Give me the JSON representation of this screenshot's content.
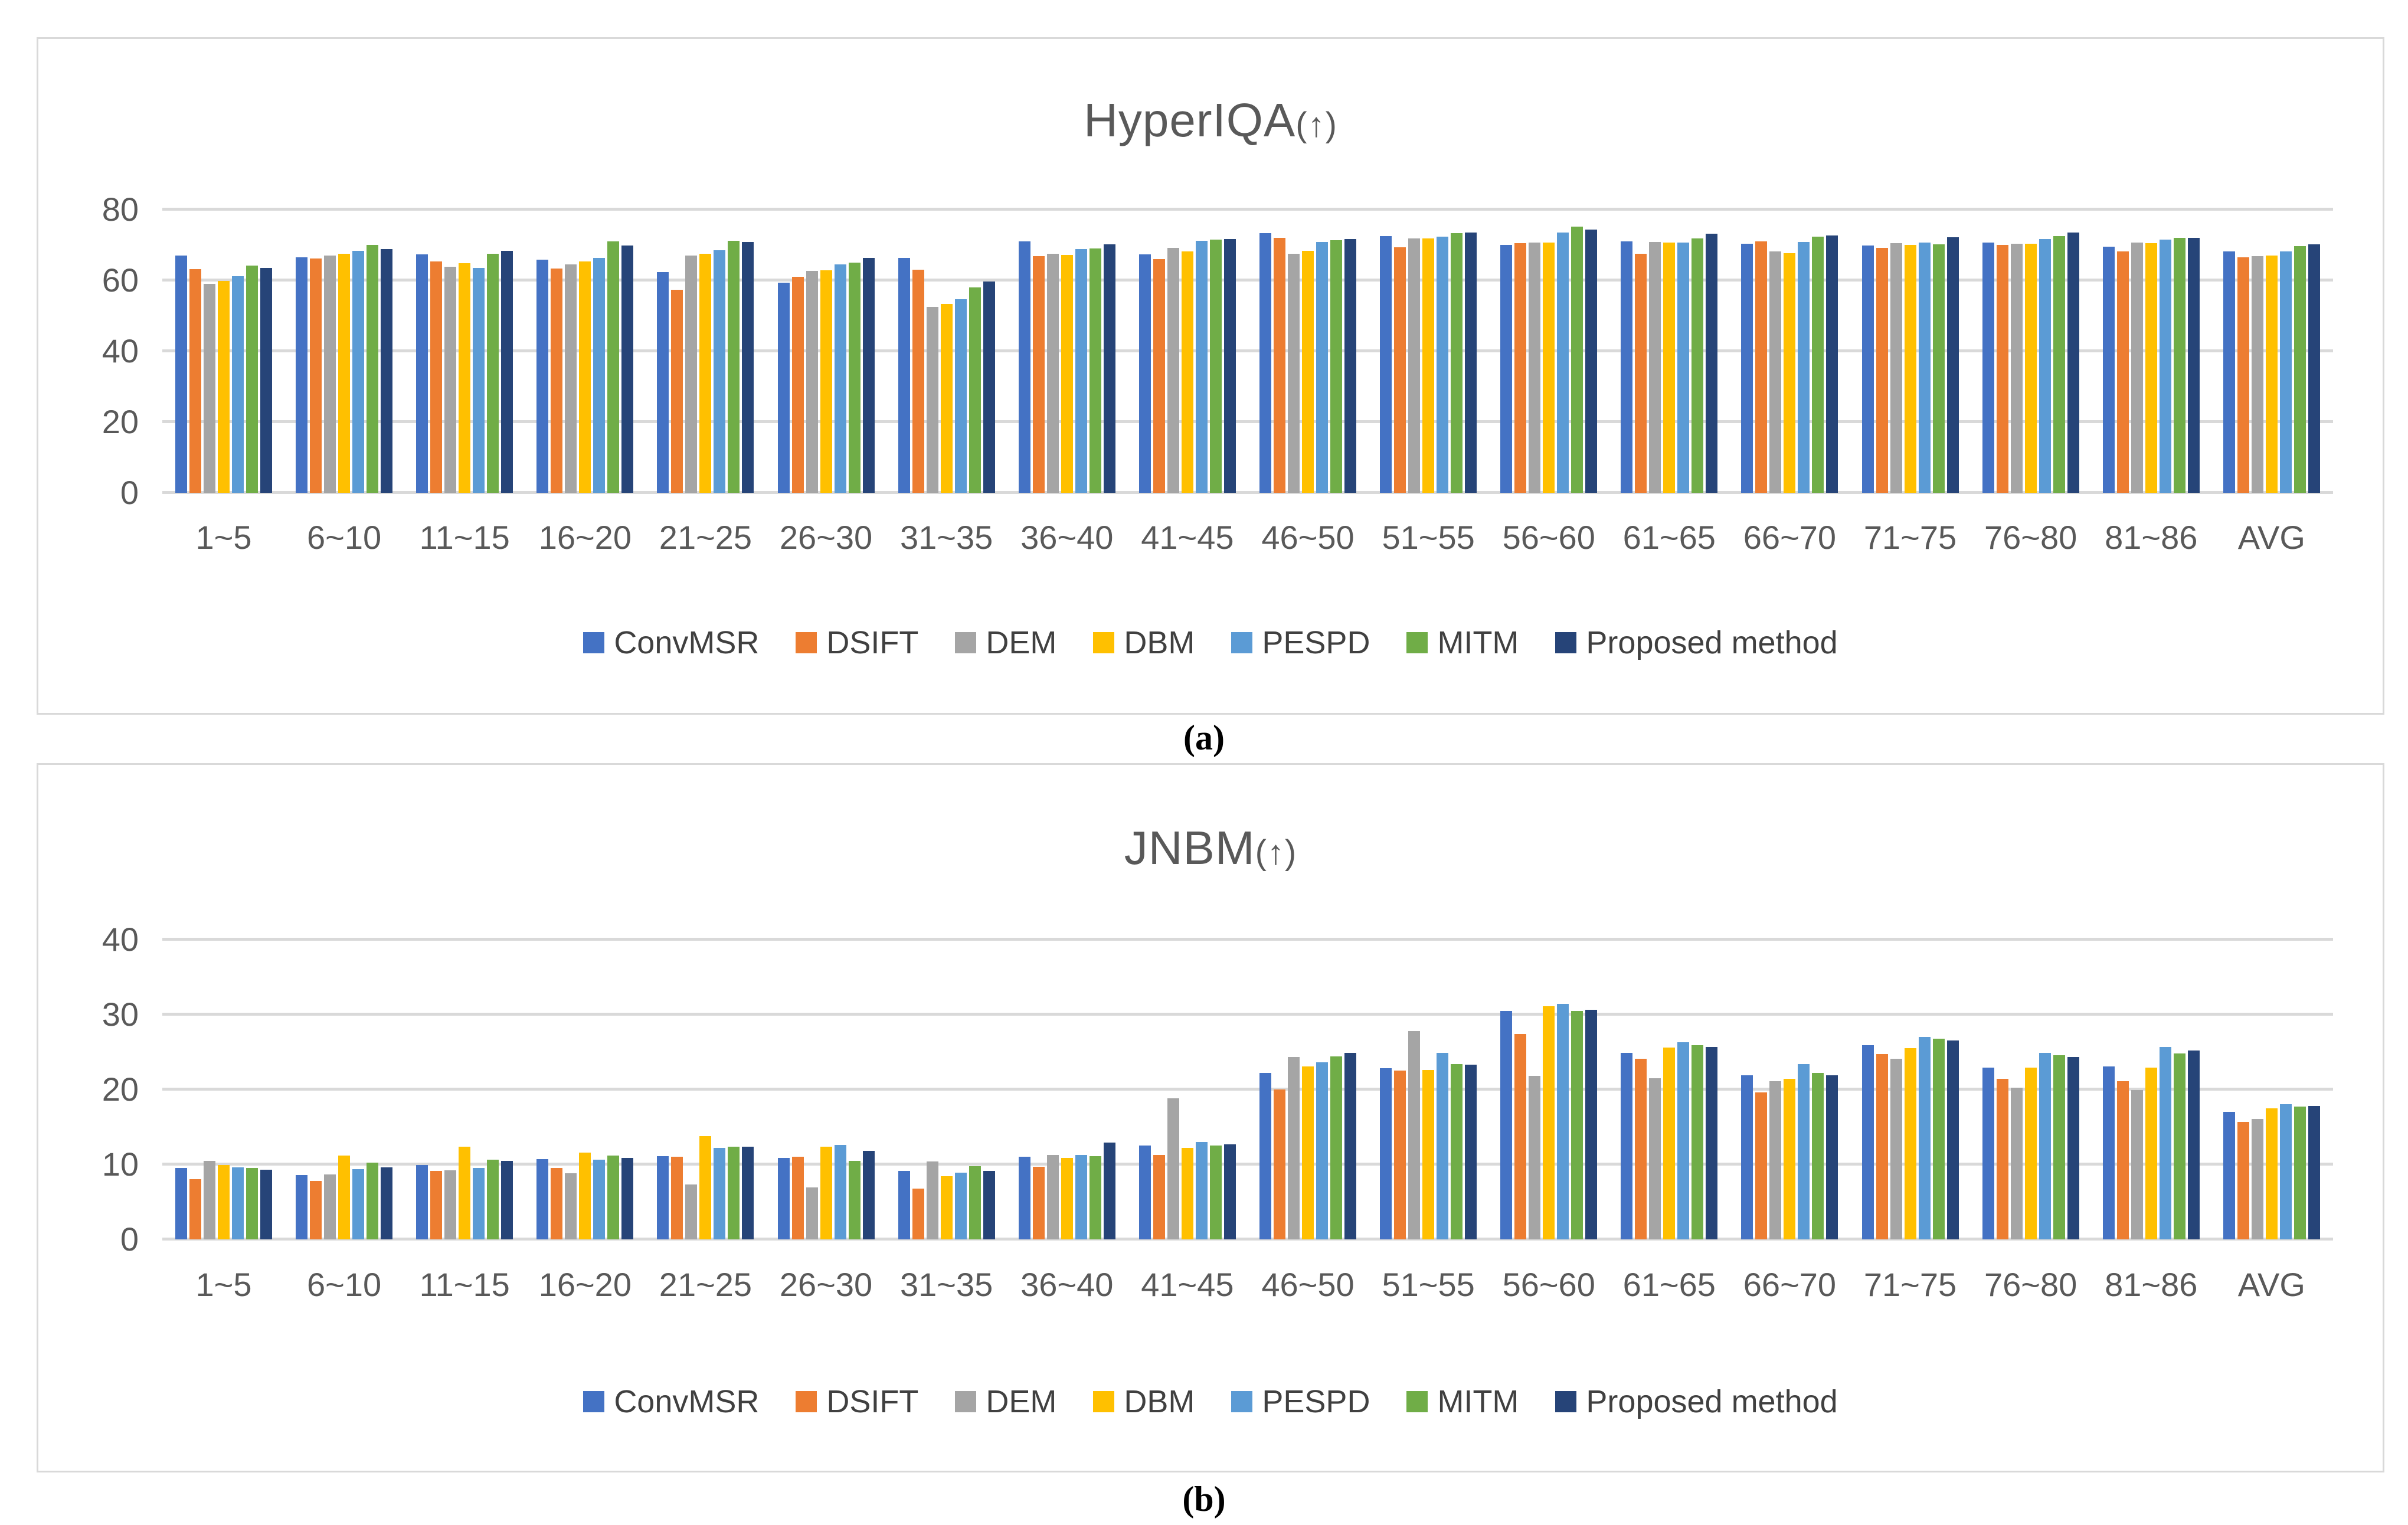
{
  "figure": {
    "caption_a": "(a)",
    "caption_b": "(b)"
  },
  "colors": {
    "gridline": "#D9D9D9",
    "panel_border": "#D9D9D9",
    "axis_text": "#595959",
    "title_text": "#595959",
    "legend_text": "#404040",
    "background": "#FFFFFF"
  },
  "chart_data": [
    {
      "type": "bar",
      "title": "HyperIQA",
      "title_suffix": "(↑)",
      "ylabel": "",
      "xlabel": "",
      "ylim": [
        0,
        80
      ],
      "yticks": [
        0,
        20,
        40,
        60,
        80
      ],
      "grid": true,
      "legend_position": "bottom",
      "categories": [
        "1~5",
        "6~10",
        "11~15",
        "16~20",
        "21~25",
        "26~30",
        "31~35",
        "36~40",
        "41~45",
        "46~50",
        "51~55",
        "56~60",
        "61~65",
        "66~70",
        "71~75",
        "76~80",
        "81~86",
        "AVG"
      ],
      "series": [
        {
          "name": "ConvMSR",
          "color": "#4472C4",
          "values": [
            67.0,
            66.5,
            67.4,
            65.8,
            62.3,
            59.3,
            66.3,
            71.0,
            67.3,
            73.3,
            72.5,
            70.0,
            71.0,
            70.3,
            69.8,
            70.7,
            69.5,
            68.2
          ]
        },
        {
          "name": "DSIFT",
          "color": "#ED7D31",
          "values": [
            63.2,
            66.2,
            65.3,
            63.3,
            57.3,
            61.0,
            63.0,
            66.8,
            66.0,
            72.0,
            69.3,
            70.5,
            67.5,
            71.0,
            69.2,
            70.0,
            68.2,
            66.5
          ]
        },
        {
          "name": "DEM",
          "color": "#A5A5A5",
          "values": [
            59.0,
            67.0,
            63.8,
            64.5,
            67.0,
            62.7,
            52.5,
            67.5,
            69.2,
            67.5,
            71.8,
            70.7,
            70.8,
            68.2,
            70.5,
            70.3,
            70.7,
            66.8
          ]
        },
        {
          "name": "DBM",
          "color": "#FFC000",
          "values": [
            59.8,
            67.5,
            64.8,
            65.3,
            67.5,
            62.8,
            53.3,
            67.2,
            68.2,
            68.3,
            71.8,
            70.7,
            70.7,
            67.7,
            70.0,
            70.3,
            70.5,
            67.0
          ]
        },
        {
          "name": "PESPD",
          "color": "#5B9BD5",
          "values": [
            61.2,
            68.3,
            63.5,
            66.3,
            68.5,
            64.5,
            54.7,
            68.8,
            71.2,
            70.8,
            72.3,
            73.5,
            70.7,
            70.8,
            70.7,
            71.7,
            71.5,
            68.2
          ]
        },
        {
          "name": "MITM",
          "color": "#70AD47",
          "values": [
            64.2,
            70.0,
            67.5,
            71.0,
            71.2,
            65.0,
            58.0,
            69.0,
            71.5,
            71.3,
            73.3,
            75.2,
            71.8,
            72.3,
            70.2,
            72.5,
            72.0,
            69.7
          ]
        },
        {
          "name": "Proposed method",
          "color": "#264478",
          "values": [
            63.5,
            68.8,
            68.3,
            69.8,
            70.8,
            66.3,
            59.7,
            70.2,
            71.7,
            71.7,
            73.5,
            74.3,
            73.2,
            72.7,
            72.2,
            73.5,
            72.0,
            70.2
          ]
        }
      ]
    },
    {
      "type": "bar",
      "title": "JNBM",
      "title_suffix": "(↑)",
      "ylabel": "",
      "xlabel": "",
      "ylim": [
        0,
        40
      ],
      "yticks": [
        0,
        10,
        20,
        30,
        40
      ],
      "grid": true,
      "legend_position": "bottom",
      "categories": [
        "1~5",
        "6~10",
        "11~15",
        "16~20",
        "21~25",
        "26~30",
        "31~35",
        "36~40",
        "41~45",
        "46~50",
        "51~55",
        "56~60",
        "61~65",
        "66~70",
        "71~75",
        "76~80",
        "81~86",
        "AVG"
      ],
      "series": [
        {
          "name": "ConvMSR",
          "color": "#4472C4",
          "values": [
            9.5,
            8.6,
            9.9,
            10.7,
            11.1,
            10.9,
            9.1,
            11.0,
            12.5,
            22.2,
            22.8,
            30.5,
            24.9,
            21.9,
            25.9,
            22.9,
            23.1,
            17.0
          ]
        },
        {
          "name": "DSIFT",
          "color": "#ED7D31",
          "values": [
            8.0,
            7.8,
            9.1,
            9.5,
            11.0,
            11.0,
            6.8,
            9.7,
            11.3,
            20.0,
            22.5,
            27.4,
            24.1,
            19.6,
            24.7,
            21.4,
            21.1,
            15.7
          ]
        },
        {
          "name": "DEM",
          "color": "#A5A5A5",
          "values": [
            10.5,
            8.7,
            9.2,
            8.8,
            7.3,
            6.9,
            10.4,
            11.3,
            18.8,
            24.3,
            27.8,
            21.8,
            21.5,
            21.1,
            24.1,
            20.2,
            19.9,
            16.1
          ]
        },
        {
          "name": "DBM",
          "color": "#FFC000",
          "values": [
            9.9,
            11.2,
            12.4,
            11.6,
            13.8,
            12.4,
            8.4,
            10.9,
            12.2,
            23.1,
            22.6,
            31.1,
            25.6,
            21.4,
            25.5,
            22.9,
            22.9,
            17.5
          ]
        },
        {
          "name": "PESPD",
          "color": "#5B9BD5",
          "values": [
            9.6,
            9.4,
            9.5,
            10.6,
            12.2,
            12.6,
            8.9,
            11.3,
            13.0,
            23.6,
            24.9,
            31.4,
            26.3,
            23.4,
            27.0,
            24.9,
            25.7,
            18.0
          ]
        },
        {
          "name": "MITM",
          "color": "#70AD47",
          "values": [
            9.5,
            10.2,
            10.6,
            11.2,
            12.4,
            10.5,
            9.8,
            11.1,
            12.5,
            24.4,
            23.4,
            30.5,
            25.9,
            22.2,
            26.8,
            24.6,
            24.8,
            17.7
          ]
        },
        {
          "name": "Proposed method",
          "color": "#264478",
          "values": [
            9.3,
            9.6,
            10.5,
            10.9,
            12.4,
            11.8,
            9.1,
            12.9,
            12.7,
            24.9,
            23.3,
            30.6,
            25.7,
            21.9,
            26.5,
            24.3,
            25.2,
            17.8
          ]
        }
      ]
    }
  ]
}
